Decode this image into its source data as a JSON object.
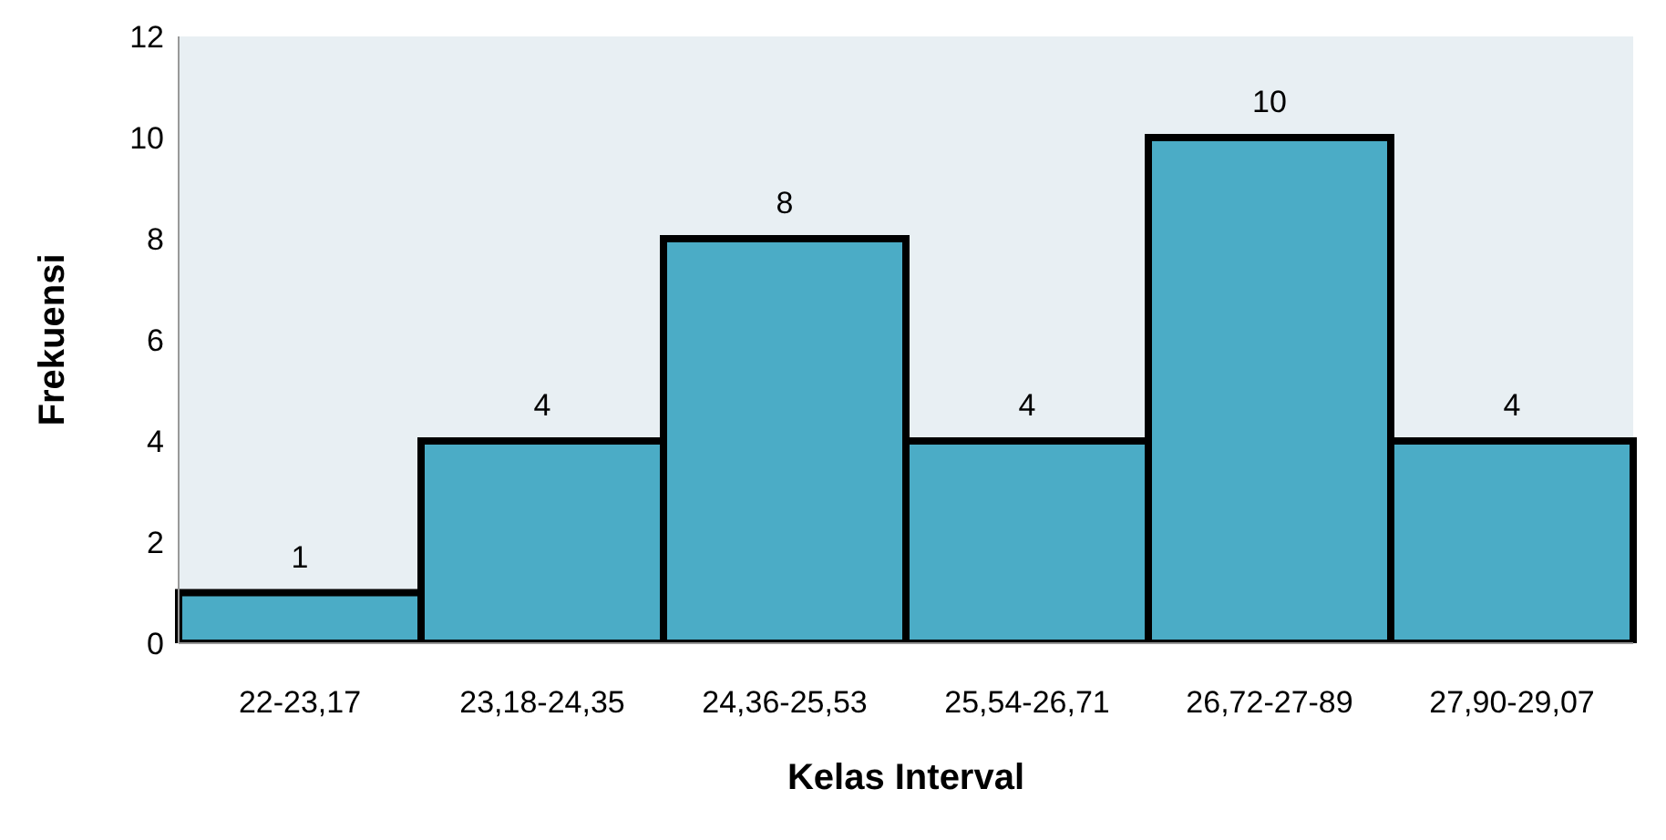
{
  "chart_data": {
    "type": "bar",
    "xlabel": "Kelas Interval",
    "ylabel": "Frekuensi",
    "categories": [
      "22-23,17",
      "23,18-24,35",
      "24,36-25,53",
      "25,54-26,71",
      "26,72-27-89",
      "27,90-29,07"
    ],
    "values": [
      1,
      4,
      8,
      4,
      10,
      4
    ],
    "color": "#4bacc6",
    "ylim": [
      0,
      12
    ],
    "yticks": [
      0,
      2,
      4,
      6,
      8,
      10,
      12
    ],
    "grid": false,
    "data_labels": true
  }
}
